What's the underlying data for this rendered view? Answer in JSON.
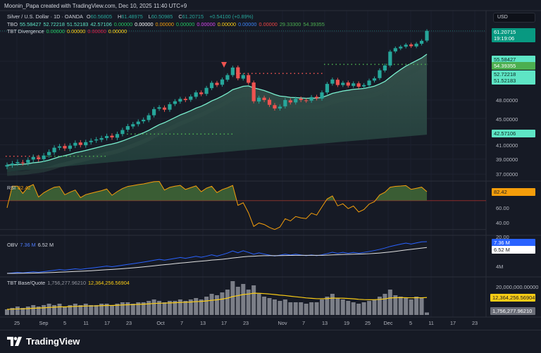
{
  "header": {
    "credit": "Moonin_Papa created with TradingView.com, Dec 10, 2025 11:40 UTC+9"
  },
  "legend": {
    "symbol": "Silver / U.S. Dollar · 1D · OANDA",
    "o_label": "O",
    "o": "60.56805",
    "h_label": "H",
    "h": "61.48975",
    "l_label": "L",
    "l": "60.50985",
    "c_label": "C",
    "c": "61.20715",
    "change": "+0.54100 (+0.89%)",
    "tbo_name": "TBO",
    "tbo_values": [
      {
        "v": "55.58427",
        "color": "#5ee5c5"
      },
      {
        "v": "52.72218",
        "color": "#5ee5c5"
      },
      {
        "v": "51.52183",
        "color": "#5ee5c5"
      },
      {
        "v": "42.57106",
        "color": "#5ee5c5"
      },
      {
        "v": "0.00000",
        "color": "#22c55e"
      },
      {
        "v": "0.00000",
        "color": "#ffffff"
      },
      {
        "v": "0.00000",
        "color": "#f59e0b"
      },
      {
        "v": "0.00000",
        "color": "#22c55e"
      },
      {
        "v": "0.00000",
        "color": "#d946ef"
      },
      {
        "v": "0.00000",
        "color": "#facc15"
      },
      {
        "v": "0.00000",
        "color": "#3b82f6"
      },
      {
        "v": "0.00000",
        "color": "#ef4444"
      },
      {
        "v": "29.33300",
        "color": "#4caf50"
      },
      {
        "v": "54.39355",
        "color": "#4caf50"
      }
    ],
    "div_name": "TBT Divergence",
    "div_values": [
      {
        "v": "0.00000",
        "color": "#22c55e"
      },
      {
        "v": "0.00000",
        "color": "#facc15"
      },
      {
        "v": "0.00000",
        "color": "#e11d48"
      },
      {
        "v": "0.00000",
        "color": "#facc15"
      }
    ],
    "rsi_name": "RSI",
    "rsi_value": "82.42",
    "obv_name": "OBV",
    "obv_value": "7.36 M",
    "obv_ma": "6.52 M",
    "bq_name": "TBT Base/Quote",
    "bq_value": "1,756,277.96210",
    "bq_ma": "12,364,256.56904"
  },
  "price_axis": {
    "currency": "USD",
    "ticks": [
      "48.00000",
      "45.00000",
      "41.00000",
      "39.00000",
      "37.00000"
    ],
    "last_price": "61.20715",
    "countdown": "19:19:06",
    "labels": [
      {
        "v": "55.58427",
        "bg": "#5ee5c5",
        "fg": "#0b2a22"
      },
      {
        "v": "54.39355",
        "bg": "#4caf50",
        "fg": "#ffffff"
      },
      {
        "v": "52.72218",
        "bg": "#5ee5c5",
        "fg": "#0b2a22"
      },
      {
        "v": "51.52183",
        "bg": "#5ee5c5",
        "fg": "#0b2a22"
      },
      {
        "v": "42.57106",
        "bg": "#5ee5c5",
        "fg": "#0b2a22"
      }
    ]
  },
  "rsi_axis": {
    "ticks": [
      "60.00",
      "40.00",
      "20.00"
    ]
  },
  "obv_axis": {
    "ticks": [
      "4M"
    ]
  },
  "bq_axis": {
    "ticks": [
      "20,000,000.00000"
    ]
  },
  "dates": [
    "25",
    "Sep",
    "5",
    "11",
    "17",
    "23",
    "Oct",
    "7",
    "13",
    "17",
    "23",
    "Nov",
    "7",
    "13",
    "19",
    "25",
    "Dec",
    "5",
    "11",
    "17",
    "23"
  ],
  "footer": {
    "brand": "TradingView"
  },
  "colors": {
    "up": "#26a69a",
    "down": "#ef5350",
    "bg": "#161a25"
  },
  "chart_data": {
    "type": "candlestick",
    "closes": [
      38.2,
      38.4,
      38.6,
      38.5,
      38.9,
      39.3,
      39.0,
      39.5,
      40.0,
      40.6,
      40.8,
      40.5,
      40.9,
      41.3,
      41.0,
      41.4,
      41.6,
      41.8,
      42.0,
      42.3,
      42.1,
      42.6,
      43.2,
      43.8,
      44.1,
      44.5,
      44.8,
      45.5,
      46.5,
      46.8,
      46.4,
      47.3,
      47.8,
      48.2,
      48.0,
      48.6,
      49.3,
      49.0,
      50.1,
      51.0,
      50.6,
      51.6,
      52.4,
      53.8,
      51.8,
      52.4,
      51.0,
      47.8,
      48.4,
      48.0,
      47.2,
      46.6,
      46.9,
      48.0,
      47.6,
      48.2,
      48.0,
      47.9,
      48.5,
      48.3,
      49.3,
      50.8,
      51.6,
      50.6,
      51.0,
      50.5,
      50.9,
      50.3,
      50.6,
      51.4,
      51.8,
      53.3,
      54.2,
      56.9,
      57.6,
      57.9,
      58.3,
      58.0,
      58.5,
      59.1,
      61.2
    ],
    "volume_m": [
      4,
      5,
      6,
      5,
      6,
      7,
      6,
      7,
      8,
      7,
      8,
      6,
      7,
      8,
      7,
      8,
      7,
      7,
      8,
      8,
      7,
      8,
      9,
      9,
      8,
      9,
      9,
      10,
      11,
      10,
      9,
      10,
      10,
      11,
      10,
      11,
      12,
      11,
      13,
      15,
      14,
      16,
      18,
      24,
      20,
      22,
      18,
      21,
      15,
      13,
      12,
      11,
      10,
      11,
      9,
      9,
      9,
      8,
      9,
      9,
      11,
      13,
      15,
      12,
      11,
      10,
      9,
      8,
      9,
      10,
      11,
      13,
      15,
      18,
      14,
      13,
      12,
      11,
      13,
      12,
      1.76
    ]
  }
}
